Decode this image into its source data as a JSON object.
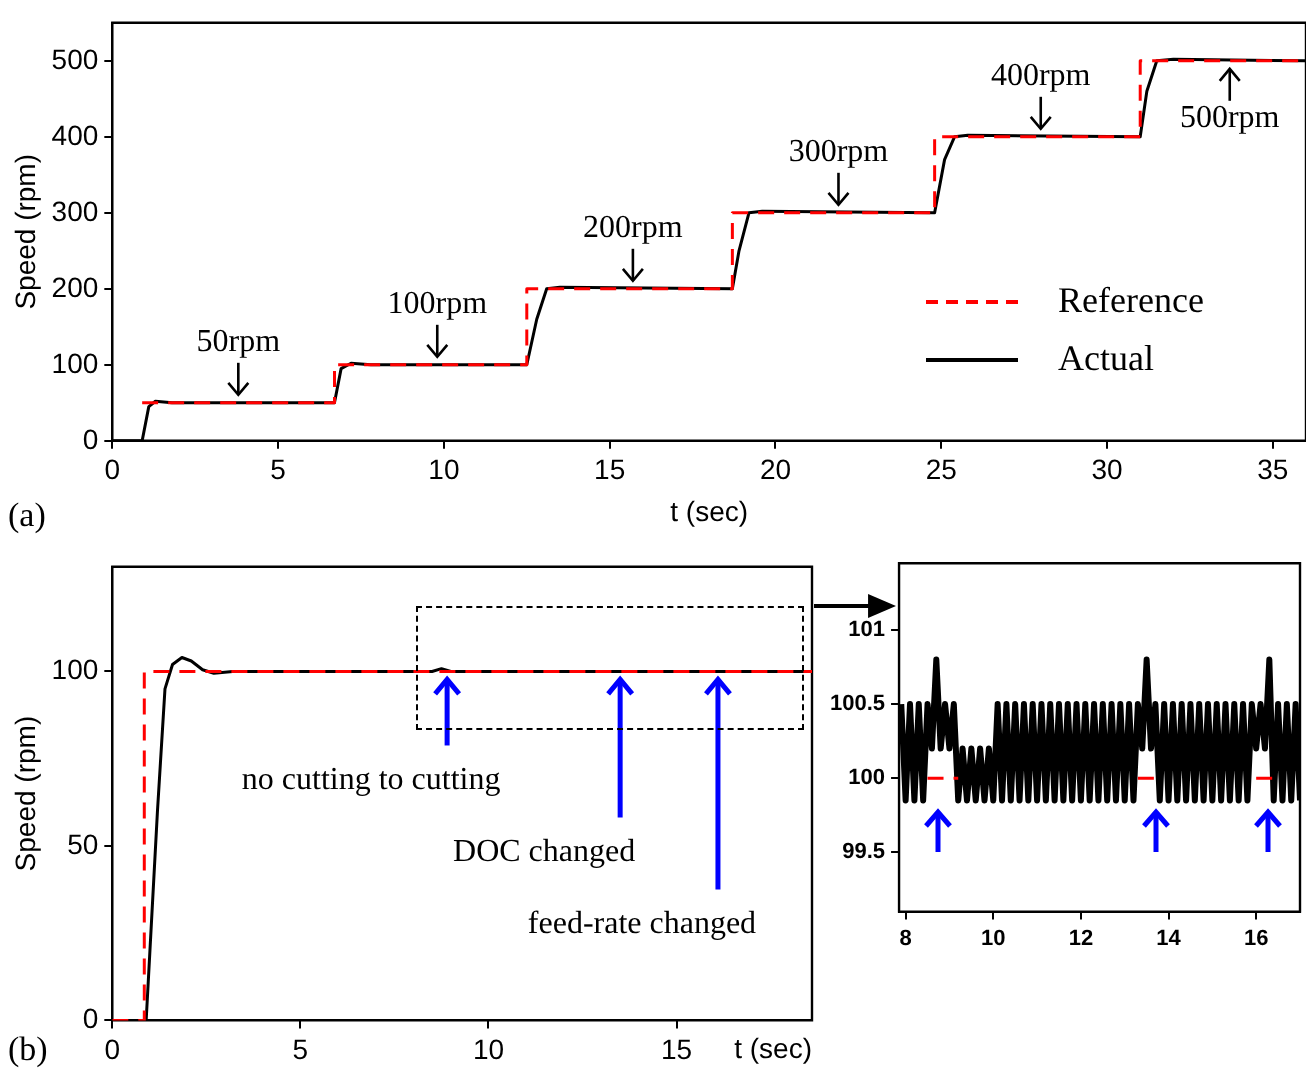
{
  "chart_data": [
    {
      "type": "line",
      "xlabel": "t (sec)",
      "ylabel": "Speed (rpm)",
      "xlim": [
        0,
        36
      ],
      "xticks": [
        0,
        5,
        10,
        15,
        20,
        25,
        30,
        35
      ],
      "ylim": [
        0,
        550
      ],
      "yticks": [
        0,
        100,
        200,
        300,
        400,
        500
      ],
      "legend": "bottom right",
      "annotations": [
        "(a)",
        {
          "text": "50rpm",
          "x": 3.8,
          "y": 50
        },
        {
          "text": "100rpm",
          "x": 9.8,
          "y": 100
        },
        {
          "text": "200rpm",
          "x": 15.7,
          "y": 200
        },
        {
          "text": "300rpm",
          "x": 21.9,
          "y": 300
        },
        {
          "text": "400rpm",
          "x": 28,
          "y": 400
        },
        {
          "text": "500rpm",
          "x": 33.7,
          "y": 500
        }
      ],
      "series": [
        {
          "name": "Reference",
          "type": "step",
          "color": "#ff0000",
          "line_style": "dashed",
          "x": [
            0.9,
            6.7,
            12.5,
            18.7,
            24.8,
            31,
            36
          ],
          "values": [
            50,
            100,
            200,
            300,
            400,
            500,
            500
          ]
        },
        {
          "name": "Actual",
          "type": "line",
          "color": "#000000",
          "line_style": "solid",
          "x": [
            0,
            0.9,
            1.1,
            1.3,
            1.8,
            6.7,
            6.9,
            7.2,
            7.8,
            12.5,
            12.8,
            13.1,
            13.5,
            18.7,
            18.9,
            19.2,
            19.6,
            24.8,
            25.1,
            25.4,
            25.8,
            31,
            31.2,
            31.5,
            32,
            36
          ],
          "values": [
            0,
            0,
            45,
            52,
            50,
            50,
            95,
            102,
            100,
            100,
            160,
            200,
            202,
            200,
            250,
            300,
            302,
            300,
            370,
            400,
            402,
            400,
            460,
            500,
            502,
            500
          ]
        }
      ]
    },
    {
      "type": "line",
      "xlabel": "t (sec)",
      "ylabel": "Speed (rpm)",
      "xlim": [
        0,
        18.6
      ],
      "xticks": [
        0,
        5,
        10,
        15
      ],
      "ylim": [
        0,
        130
      ],
      "yticks": [
        0,
        50,
        100
      ],
      "annotations": [
        "(b)",
        {
          "text": "no cutting to cutting",
          "x": 8.9,
          "y": 100
        },
        {
          "text": "DOC changed",
          "x": 13.5,
          "y": 100
        },
        {
          "text": "feed-rate changed",
          "x": 16.1,
          "y": 100
        }
      ],
      "series": [
        {
          "type": "step",
          "color": "#ff0000",
          "line_style": "dashed",
          "x": [
            0,
            0.85,
            18.6
          ],
          "values": [
            0,
            100,
            100
          ]
        },
        {
          "type": "line",
          "color": "#000000",
          "line_style": "solid",
          "x": [
            0.9,
            1.0,
            1.2,
            1.4,
            1.6,
            1.85,
            2.1,
            2.4,
            2.7,
            3.2,
            8.5,
            8.75,
            9.0,
            18.6
          ],
          "values": [
            0,
            20,
            60,
            95,
            102,
            104,
            103,
            100.5,
            99.5,
            100,
            100,
            100.8,
            100,
            100
          ]
        }
      ]
    },
    {
      "type": "line",
      "xlim": [
        7.85,
        17
      ],
      "xticks": [
        8,
        10,
        12,
        14,
        16
      ],
      "ylim": [
        99.1,
        101.45
      ],
      "yticks": [
        99.5,
        100,
        100.5,
        101
      ],
      "series": [
        {
          "type": "line",
          "color": "#ff0000",
          "line_style": "dashed",
          "x": [
            8.5,
            9.2,
            11,
            13.3,
            13.8,
            15,
            16.0,
            16.4
          ],
          "values": [
            100,
            100,
            null,
            100,
            100,
            null,
            100,
            100
          ]
        },
        {
          "type": "line",
          "color": "#000000",
          "line_style": "solid",
          "x": [
            7.9,
            8.0,
            8.1,
            8.2,
            8.3,
            8.4,
            8.5,
            8.6,
            8.7,
            8.8,
            8.9,
            9.0,
            9.1,
            9.2,
            9.3,
            9.4,
            9.5,
            9.6,
            9.7,
            9.8,
            9.9,
            10.0,
            10.1,
            10.2,
            10.3,
            10.4,
            10.5,
            10.6,
            10.7,
            10.8,
            10.9,
            11.0,
            11.1,
            11.2,
            11.3,
            11.4,
            11.5,
            11.6,
            11.7,
            11.8,
            11.9,
            12.0,
            12.1,
            12.2,
            12.3,
            12.4,
            12.5,
            12.6,
            12.7,
            12.8,
            12.9,
            13.0,
            13.1,
            13.2,
            13.3,
            13.4,
            13.5,
            13.6,
            13.7,
            13.8,
            13.9,
            14.0,
            14.1,
            14.2,
            14.3,
            14.4,
            14.5,
            14.6,
            14.7,
            14.8,
            14.9,
            15.0,
            15.1,
            15.2,
            15.3,
            15.4,
            15.5,
            15.6,
            15.7,
            15.8,
            15.9,
            16.0,
            16.1,
            16.2,
            16.3,
            16.4,
            16.5,
            16.6,
            16.7,
            16.8,
            16.9,
            17.0
          ],
          "values": [
            100.5,
            99.85,
            100.5,
            99.85,
            100.5,
            99.85,
            100.5,
            100.2,
            100.8,
            100.2,
            100.5,
            100.2,
            100.5,
            99.85,
            100.2,
            99.85,
            100.2,
            99.85,
            100.2,
            99.85,
            100.2,
            99.85,
            100.5,
            99.85,
            100.5,
            99.85,
            100.5,
            99.85,
            100.5,
            99.85,
            100.5,
            99.85,
            100.5,
            99.85,
            100.5,
            99.85,
            100.5,
            99.85,
            100.5,
            99.85,
            100.5,
            99.85,
            100.5,
            99.85,
            100.5,
            99.85,
            100.5,
            99.85,
            100.5,
            99.85,
            100.5,
            99.85,
            100.5,
            99.85,
            100.5,
            100.2,
            100.8,
            100.2,
            100.5,
            99.85,
            100.5,
            99.85,
            100.5,
            99.85,
            100.5,
            99.85,
            100.5,
            99.85,
            100.5,
            99.85,
            100.5,
            99.85,
            100.5,
            99.85,
            100.5,
            99.85,
            100.5,
            99.85,
            100.5,
            99.85,
            100.5,
            100.2,
            100.5,
            100.2,
            100.8,
            99.85,
            100.5,
            99.85,
            100.5,
            99.85,
            100.5,
            99.85
          ]
        }
      ]
    }
  ]
}
